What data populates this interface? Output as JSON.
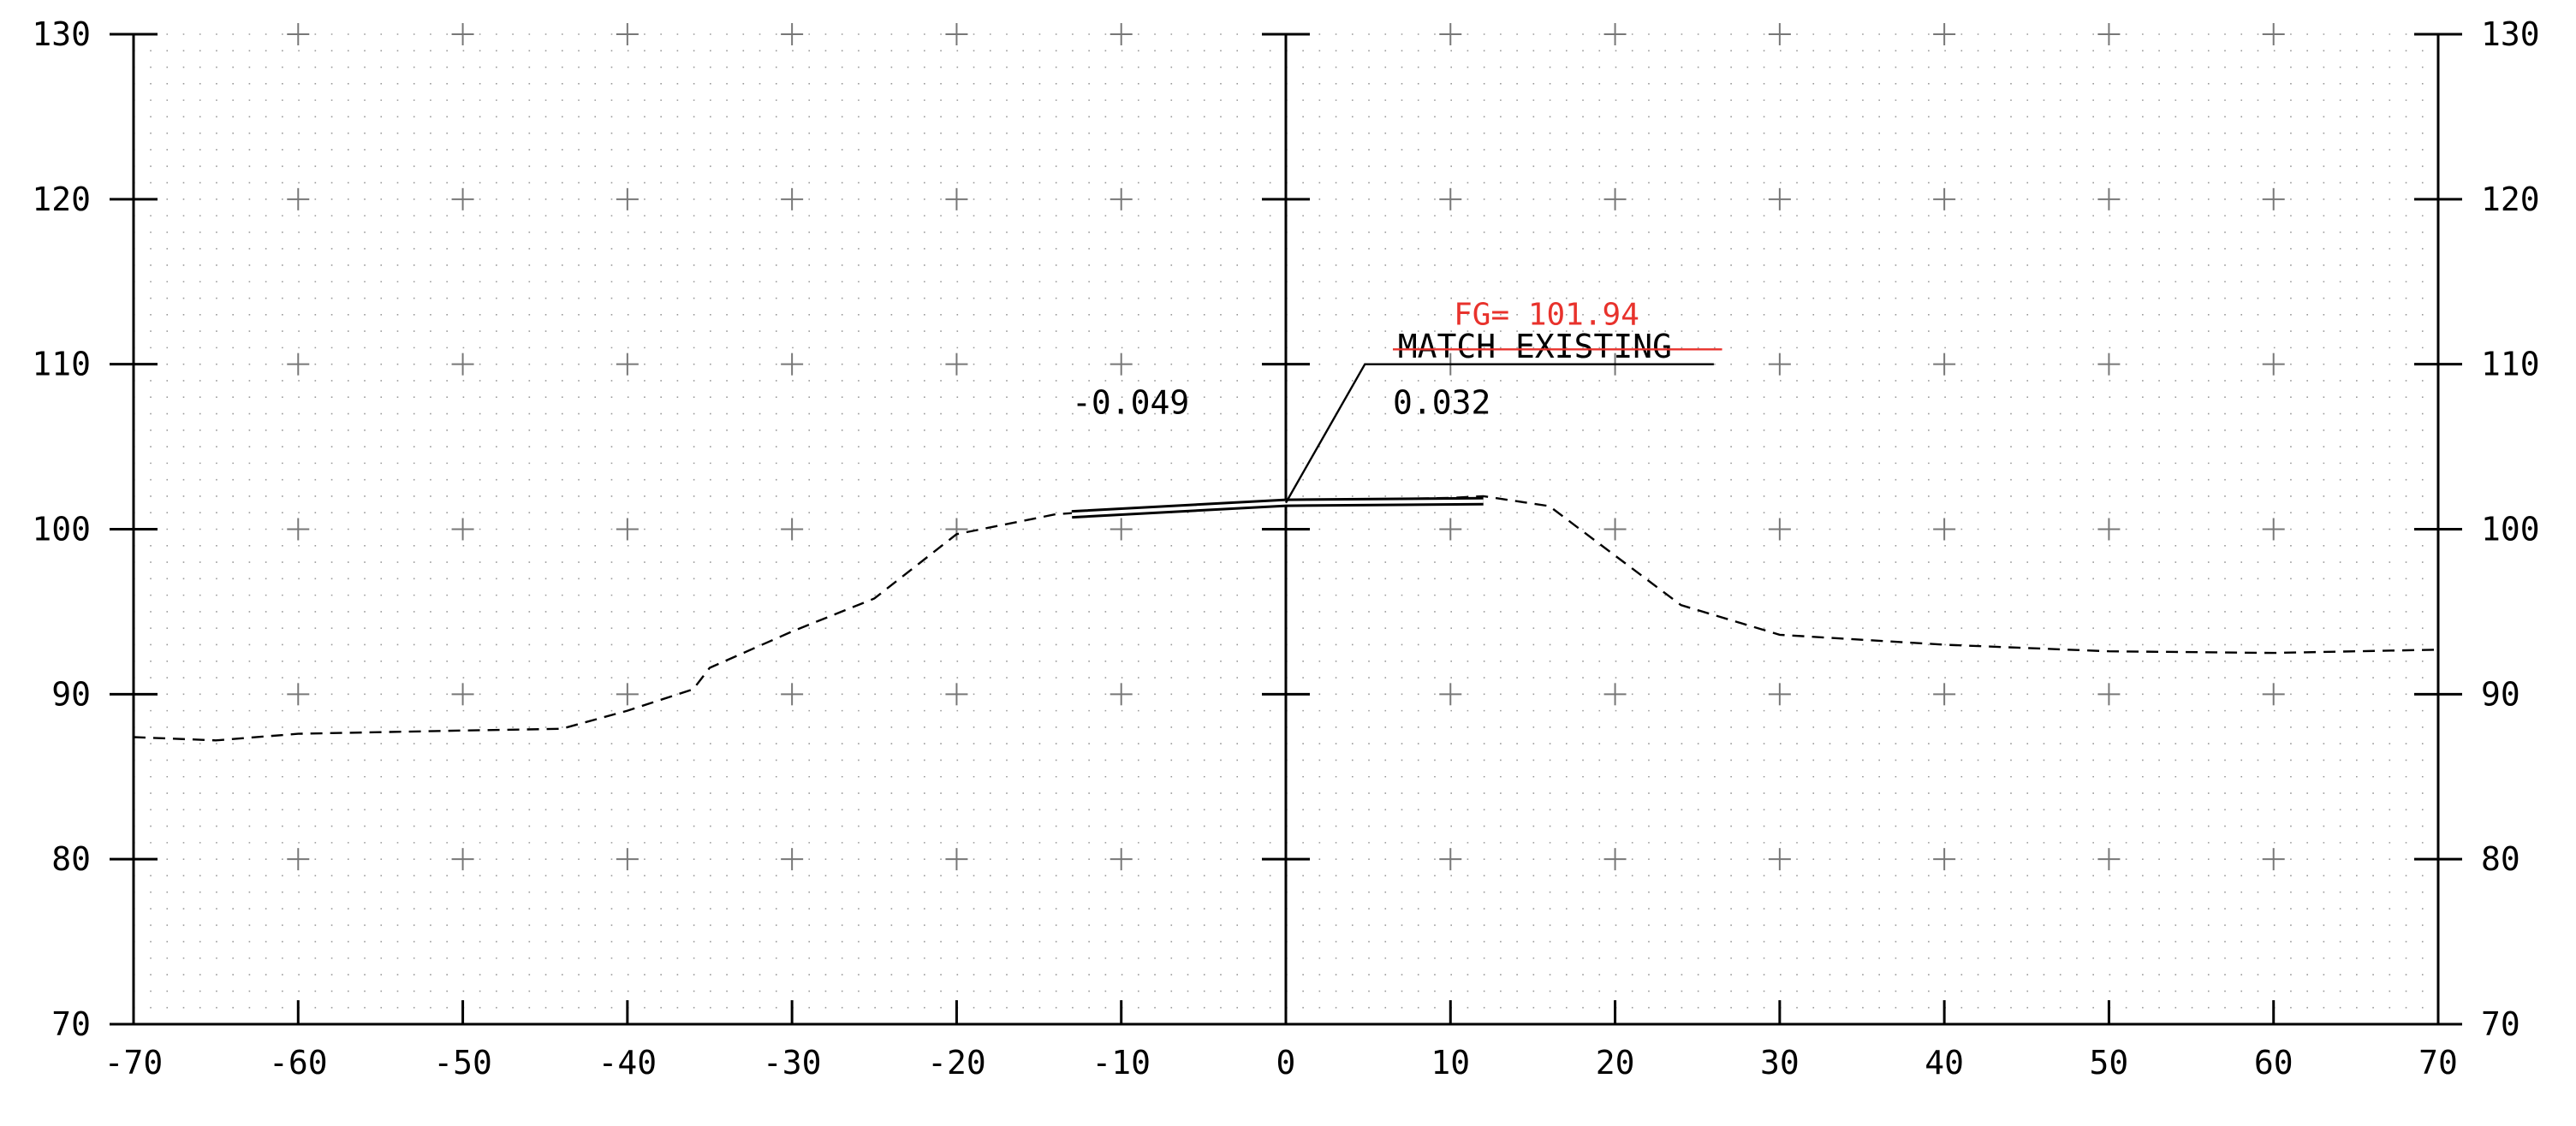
{
  "chart_data": {
    "type": "line",
    "title": "",
    "xlabel": "",
    "ylabel": "",
    "xlim": [
      -70,
      70
    ],
    "ylim": [
      70,
      130
    ],
    "xticks": [
      -70,
      -60,
      -50,
      -40,
      -30,
      -20,
      -10,
      0,
      10,
      20,
      30,
      40,
      50,
      60,
      70
    ],
    "xtick_labels": [
      "-70",
      "-60",
      "-50",
      "-40",
      "-30",
      "-20",
      "-10",
      "0",
      "10",
      "20",
      "30",
      "40",
      "50",
      "60",
      "70"
    ],
    "yticks": [
      70,
      80,
      90,
      100,
      110,
      120,
      130
    ],
    "ytick_labels": [
      "70",
      "80",
      "90",
      "100",
      "110",
      "120",
      "130"
    ],
    "grid": true,
    "series": [
      {
        "style": "dashed",
        "color": "#000000",
        "x": [
          -70,
          -65,
          -60,
          -55,
          -50,
          -44,
          -40,
          -36,
          -35,
          -30,
          -25,
          -20,
          -14,
          -10,
          0,
          10,
          12,
          16,
          20,
          24,
          30,
          40,
          50,
          60,
          70
        ],
        "y": [
          87.4,
          87.2,
          87.6,
          87.7,
          87.8,
          87.9,
          89.0,
          90.3,
          91.6,
          93.8,
          95.8,
          99.7,
          100.9,
          101.2,
          101.7,
          101.9,
          102.0,
          101.4,
          98.4,
          95.4,
          93.6,
          93.0,
          92.6,
          92.5,
          92.7
        ]
      },
      {
        "style": "solid-double",
        "color": "#000000",
        "x": [
          -13,
          0,
          12
        ],
        "y": [
          100.9,
          101.6,
          101.7
        ]
      }
    ],
    "leader_line": {
      "x": [
        0,
        4.8,
        26
      ],
      "y": [
        101.6,
        110.0,
        110.0
      ]
    },
    "red_line": {
      "x": [
        6.5,
        26.5
      ],
      "y": [
        110.9,
        110.9
      ]
    },
    "annotations": [
      {
        "text": "-0.049",
        "x": -13,
        "y": 107.0,
        "color": "#000000"
      },
      {
        "text": "0.032",
        "x": 6.5,
        "y": 107.0,
        "color": "#000000"
      },
      {
        "text": "MATCH EXISTING",
        "x": 6.8,
        "y": 110.4,
        "color": "#000000"
      },
      {
        "text": "FG= 101.94",
        "x": 10.2,
        "y": 112.4,
        "color": "#e8322c"
      }
    ]
  }
}
